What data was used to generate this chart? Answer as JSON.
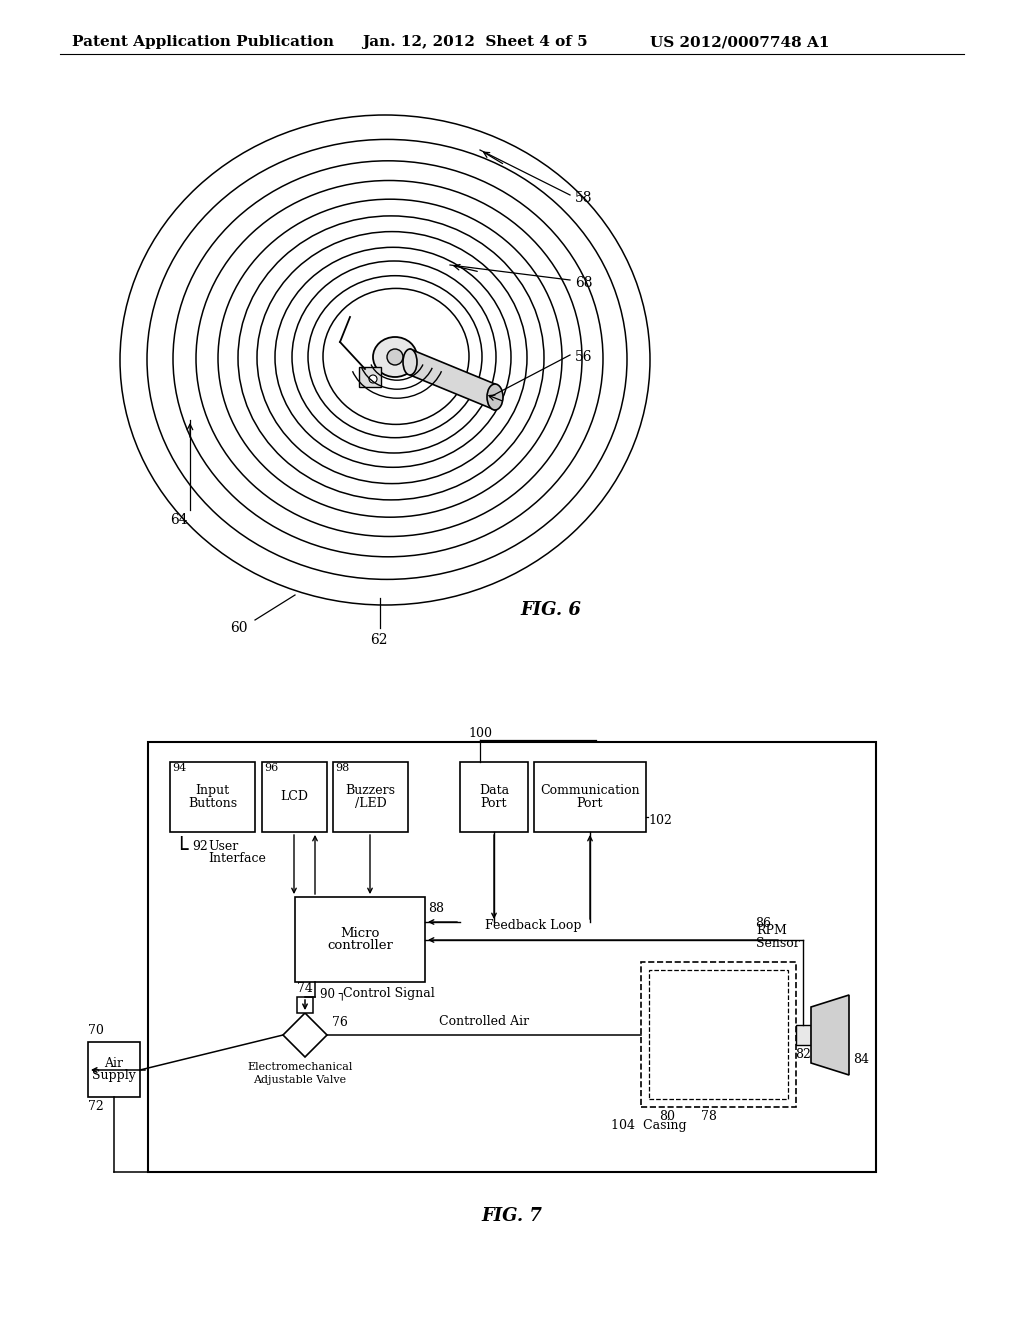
{
  "bg_color": "#ffffff",
  "header_left": "Patent Application Publication",
  "header_mid": "Jan. 12, 2012  Sheet 4 of 5",
  "header_right": "US 2012/0007748 A1",
  "fig6_label": "FIG. 6",
  "fig7_label": "FIG. 7",
  "line_color": "#000000",
  "font_size_header": 11,
  "font_size_ref": 10,
  "font_size_fig": 13
}
